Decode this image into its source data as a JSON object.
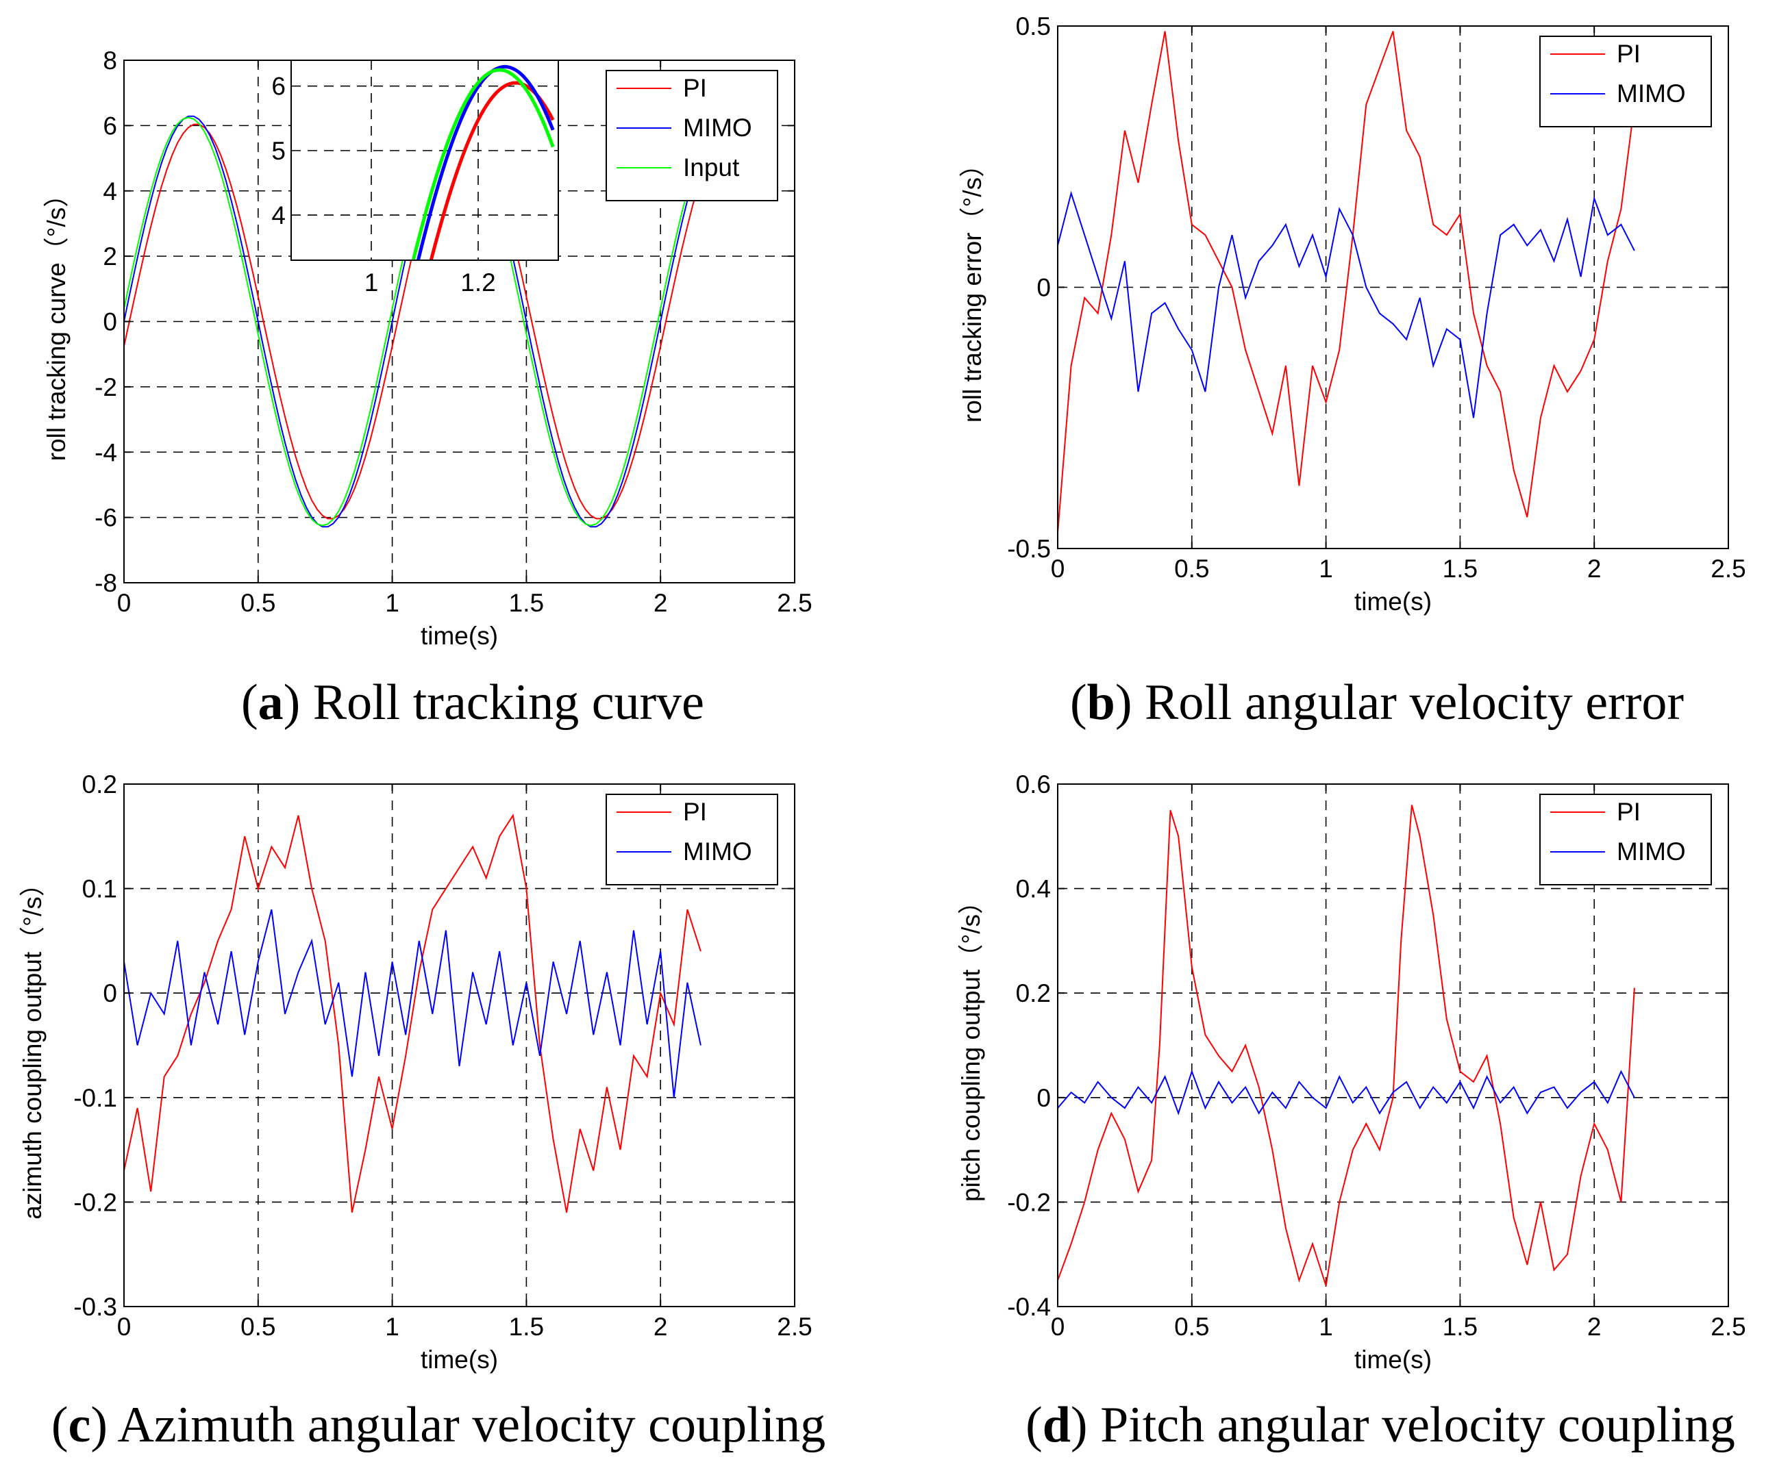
{
  "figure": {
    "captions": [
      {
        "letter": "a",
        "text": "Roll tracking curve"
      },
      {
        "letter": "b",
        "text": "Roll angular velocity error"
      },
      {
        "letter": "c",
        "text": "Azimuth angular velocity coupling"
      },
      {
        "letter": "d",
        "text": "Pitch angular velocity coupling"
      }
    ]
  },
  "chart_data": [
    {
      "id": "a",
      "type": "line",
      "xlabel": "time(s)",
      "ylabel": "roll tracking curve（°/s）",
      "xlim": [
        0,
        2.5
      ],
      "ylim": [
        -8,
        8
      ],
      "xticks": [
        0,
        0.5,
        1,
        1.5,
        2,
        2.5
      ],
      "xtick_labels": [
        "0",
        "0.5",
        "1",
        "1.5",
        "2",
        "2.5"
      ],
      "yticks": [
        -8,
        -6,
        -4,
        -2,
        0,
        2,
        4,
        6,
        8
      ],
      "ytick_labels": [
        "-8",
        "-6",
        "-4",
        "-2",
        "0",
        "2",
        "4",
        "6",
        "8"
      ],
      "grid": "dashed",
      "legend": "top-right",
      "series": [
        {
          "name": "PI",
          "color": "#ff0000",
          "kind": "sine",
          "amp": 6.05,
          "phase": 0.02
        },
        {
          "name": "MIMO",
          "color": "#0000ff",
          "kind": "sine",
          "amp": 6.3,
          "phase": 0.0
        },
        {
          "name": "Input",
          "color": "#00ff00",
          "kind": "sine",
          "amp": 6.25,
          "phase": -0.01
        }
      ],
      "x_end": 2.15,
      "inset": {
        "xlim": [
          0.85,
          1.35
        ],
        "ylim": [
          3.3,
          6.4
        ],
        "xticks": [
          1,
          1.2
        ],
        "xtick_labels": [
          "1",
          "1.2"
        ],
        "yticks": [
          4,
          5,
          6
        ],
        "ytick_labels": [
          "4",
          "5",
          "6"
        ],
        "grid": "dashed"
      }
    },
    {
      "id": "b",
      "type": "line",
      "xlabel": "time(s)",
      "ylabel": "roll tracking error（°/s）",
      "xlim": [
        0,
        2.5
      ],
      "ylim": [
        -0.5,
        0.5
      ],
      "xticks": [
        0,
        0.5,
        1,
        1.5,
        2,
        2.5
      ],
      "xtick_labels": [
        "0",
        "0.5",
        "1",
        "1.5",
        "2",
        "2.5"
      ],
      "yticks": [
        -0.5,
        0,
        0.5
      ],
      "ytick_labels": [
        "-0.5",
        "0",
        "0.5"
      ],
      "grid": "dashed",
      "legend": "top-right",
      "series": [
        {
          "name": "PI",
          "color": "#ff0000",
          "x": [
            0,
            0.05,
            0.1,
            0.15,
            0.2,
            0.25,
            0.3,
            0.35,
            0.4,
            0.45,
            0.5,
            0.55,
            0.6,
            0.65,
            0.7,
            0.75,
            0.8,
            0.85,
            0.9,
            0.95,
            1.0,
            1.05,
            1.1,
            1.15,
            1.2,
            1.25,
            1.3,
            1.35,
            1.4,
            1.45,
            1.5,
            1.55,
            1.6,
            1.65,
            1.7,
            1.75,
            1.8,
            1.85,
            1.9,
            1.95,
            2.0,
            2.05,
            2.1,
            2.15
          ],
          "y": [
            -0.47,
            -0.15,
            -0.02,
            -0.05,
            0.1,
            0.3,
            0.2,
            0.35,
            0.49,
            0.28,
            0.12,
            0.1,
            0.05,
            0.0,
            -0.12,
            -0.2,
            -0.28,
            -0.15,
            -0.38,
            -0.15,
            -0.22,
            -0.12,
            0.1,
            0.35,
            0.42,
            0.49,
            0.3,
            0.25,
            0.12,
            0.1,
            0.14,
            -0.05,
            -0.15,
            -0.2,
            -0.35,
            -0.44,
            -0.25,
            -0.15,
            -0.2,
            -0.16,
            -0.1,
            0.05,
            0.15,
            0.35
          ]
        },
        {
          "name": "MIMO",
          "color": "#0000ff",
          "x": [
            0,
            0.05,
            0.1,
            0.15,
            0.2,
            0.25,
            0.3,
            0.35,
            0.4,
            0.45,
            0.5,
            0.55,
            0.6,
            0.65,
            0.7,
            0.75,
            0.8,
            0.85,
            0.9,
            0.95,
            1.0,
            1.05,
            1.1,
            1.15,
            1.2,
            1.25,
            1.3,
            1.35,
            1.4,
            1.45,
            1.5,
            1.55,
            1.6,
            1.65,
            1.7,
            1.75,
            1.8,
            1.85,
            1.9,
            1.95,
            2.0,
            2.05,
            2.1,
            2.15
          ],
          "y": [
            0.08,
            0.18,
            0.1,
            0.02,
            -0.06,
            0.05,
            -0.2,
            -0.05,
            -0.03,
            -0.08,
            -0.12,
            -0.2,
            0.0,
            0.1,
            -0.02,
            0.05,
            0.08,
            0.12,
            0.04,
            0.1,
            0.02,
            0.15,
            0.1,
            0.0,
            -0.05,
            -0.07,
            -0.1,
            -0.02,
            -0.15,
            -0.08,
            -0.1,
            -0.25,
            -0.05,
            0.1,
            0.12,
            0.08,
            0.11,
            0.05,
            0.13,
            0.02,
            0.17,
            0.1,
            0.12,
            0.07
          ]
        }
      ]
    },
    {
      "id": "c",
      "type": "line",
      "xlabel": "time(s)",
      "ylabel": "azimuth coupling output（°/s）",
      "xlim": [
        0,
        2.5
      ],
      "ylim": [
        -0.3,
        0.2
      ],
      "xticks": [
        0,
        0.5,
        1,
        1.5,
        2,
        2.5
      ],
      "xtick_labels": [
        "0",
        "0.5",
        "1",
        "1.5",
        "2",
        "2.5"
      ],
      "yticks": [
        -0.3,
        -0.2,
        -0.1,
        0,
        0.1,
        0.2
      ],
      "ytick_labels": [
        "-0.3",
        "-0.2",
        "-0.1",
        "0",
        "0.1",
        "0.2"
      ],
      "grid": "dashed",
      "legend": "top-right",
      "series": [
        {
          "name": "PI",
          "color": "#ff0000",
          "x": [
            0,
            0.05,
            0.1,
            0.15,
            0.2,
            0.25,
            0.3,
            0.35,
            0.4,
            0.45,
            0.5,
            0.55,
            0.6,
            0.65,
            0.7,
            0.75,
            0.8,
            0.85,
            0.9,
            0.95,
            1.0,
            1.05,
            1.1,
            1.15,
            1.2,
            1.25,
            1.3,
            1.35,
            1.4,
            1.45,
            1.5,
            1.55,
            1.6,
            1.65,
            1.7,
            1.75,
            1.8,
            1.85,
            1.9,
            1.95,
            2.0,
            2.05,
            2.1,
            2.15
          ],
          "y": [
            -0.17,
            -0.11,
            -0.19,
            -0.08,
            -0.06,
            -0.02,
            0.01,
            0.05,
            0.08,
            0.15,
            0.1,
            0.14,
            0.12,
            0.17,
            0.1,
            0.05,
            -0.05,
            -0.21,
            -0.15,
            -0.08,
            -0.13,
            -0.06,
            0.02,
            0.08,
            0.1,
            0.12,
            0.14,
            0.11,
            0.15,
            0.17,
            0.1,
            -0.05,
            -0.14,
            -0.21,
            -0.13,
            -0.17,
            -0.09,
            -0.15,
            -0.06,
            -0.08,
            0.0,
            -0.03,
            0.08,
            0.04
          ]
        },
        {
          "name": "MIMO",
          "color": "#0000ff",
          "x": [
            0,
            0.05,
            0.1,
            0.15,
            0.2,
            0.25,
            0.3,
            0.35,
            0.4,
            0.45,
            0.5,
            0.55,
            0.6,
            0.65,
            0.7,
            0.75,
            0.8,
            0.85,
            0.9,
            0.95,
            1.0,
            1.05,
            1.1,
            1.15,
            1.2,
            1.25,
            1.3,
            1.35,
            1.4,
            1.45,
            1.5,
            1.55,
            1.6,
            1.65,
            1.7,
            1.75,
            1.8,
            1.85,
            1.9,
            1.95,
            2.0,
            2.05,
            2.1,
            2.15
          ],
          "y": [
            0.03,
            -0.05,
            0.0,
            -0.02,
            0.05,
            -0.05,
            0.02,
            -0.03,
            0.04,
            -0.04,
            0.03,
            0.08,
            -0.02,
            0.02,
            0.05,
            -0.03,
            0.01,
            -0.08,
            0.02,
            -0.06,
            0.03,
            -0.04,
            0.05,
            -0.02,
            0.06,
            -0.07,
            0.02,
            -0.03,
            0.04,
            -0.05,
            0.01,
            -0.06,
            0.03,
            -0.02,
            0.05,
            -0.04,
            0.02,
            -0.05,
            0.06,
            -0.03,
            0.04,
            -0.1,
            0.01,
            -0.05
          ]
        }
      ]
    },
    {
      "id": "d",
      "type": "line",
      "xlabel": "time(s)",
      "ylabel": "pitch coupling output（°/s）",
      "xlim": [
        0,
        2.5
      ],
      "ylim": [
        -0.4,
        0.6
      ],
      "xticks": [
        0,
        0.5,
        1,
        1.5,
        2,
        2.5
      ],
      "xtick_labels": [
        "0",
        "0.5",
        "1",
        "1.5",
        "2",
        "2.5"
      ],
      "yticks": [
        -0.4,
        -0.2,
        0,
        0.2,
        0.4,
        0.6
      ],
      "ytick_labels": [
        "-0.4",
        "-0.2",
        "0",
        "0.2",
        "0.4",
        "0.6"
      ],
      "grid": "dashed",
      "legend": "top-right",
      "series": [
        {
          "name": "PI",
          "color": "#ff0000",
          "x": [
            0,
            0.05,
            0.1,
            0.15,
            0.2,
            0.25,
            0.3,
            0.35,
            0.38,
            0.42,
            0.45,
            0.5,
            0.55,
            0.6,
            0.65,
            0.7,
            0.75,
            0.8,
            0.85,
            0.9,
            0.95,
            1.0,
            1.05,
            1.1,
            1.15,
            1.2,
            1.25,
            1.28,
            1.32,
            1.35,
            1.4,
            1.45,
            1.5,
            1.55,
            1.6,
            1.65,
            1.7,
            1.75,
            1.8,
            1.85,
            1.9,
            1.95,
            2.0,
            2.05,
            2.1,
            2.15
          ],
          "y": [
            -0.35,
            -0.28,
            -0.2,
            -0.1,
            -0.03,
            -0.08,
            -0.18,
            -0.12,
            0.1,
            0.55,
            0.5,
            0.25,
            0.12,
            0.08,
            0.05,
            0.1,
            0.02,
            -0.1,
            -0.25,
            -0.35,
            -0.28,
            -0.36,
            -0.2,
            -0.1,
            -0.05,
            -0.1,
            0.0,
            0.3,
            0.56,
            0.5,
            0.35,
            0.15,
            0.05,
            0.03,
            0.08,
            -0.05,
            -0.23,
            -0.32,
            -0.2,
            -0.33,
            -0.3,
            -0.15,
            -0.05,
            -0.1,
            -0.2,
            0.21
          ]
        },
        {
          "name": "MIMO",
          "color": "#0000ff",
          "x": [
            0,
            0.05,
            0.1,
            0.15,
            0.2,
            0.25,
            0.3,
            0.35,
            0.4,
            0.45,
            0.5,
            0.55,
            0.6,
            0.65,
            0.7,
            0.75,
            0.8,
            0.85,
            0.9,
            0.95,
            1.0,
            1.05,
            1.1,
            1.15,
            1.2,
            1.25,
            1.3,
            1.35,
            1.4,
            1.45,
            1.5,
            1.55,
            1.6,
            1.65,
            1.7,
            1.75,
            1.8,
            1.85,
            1.9,
            1.95,
            2.0,
            2.05,
            2.1,
            2.15
          ],
          "y": [
            -0.02,
            0.01,
            -0.01,
            0.03,
            0.0,
            -0.02,
            0.02,
            -0.01,
            0.04,
            -0.03,
            0.05,
            -0.02,
            0.03,
            -0.01,
            0.02,
            -0.03,
            0.01,
            -0.02,
            0.03,
            0.0,
            -0.02,
            0.04,
            -0.01,
            0.02,
            -0.03,
            0.01,
            0.03,
            -0.02,
            0.02,
            -0.01,
            0.03,
            -0.02,
            0.04,
            -0.01,
            0.02,
            -0.03,
            0.01,
            0.02,
            -0.02,
            0.01,
            0.03,
            -0.01,
            0.05,
            0.0
          ]
        }
      ]
    }
  ]
}
